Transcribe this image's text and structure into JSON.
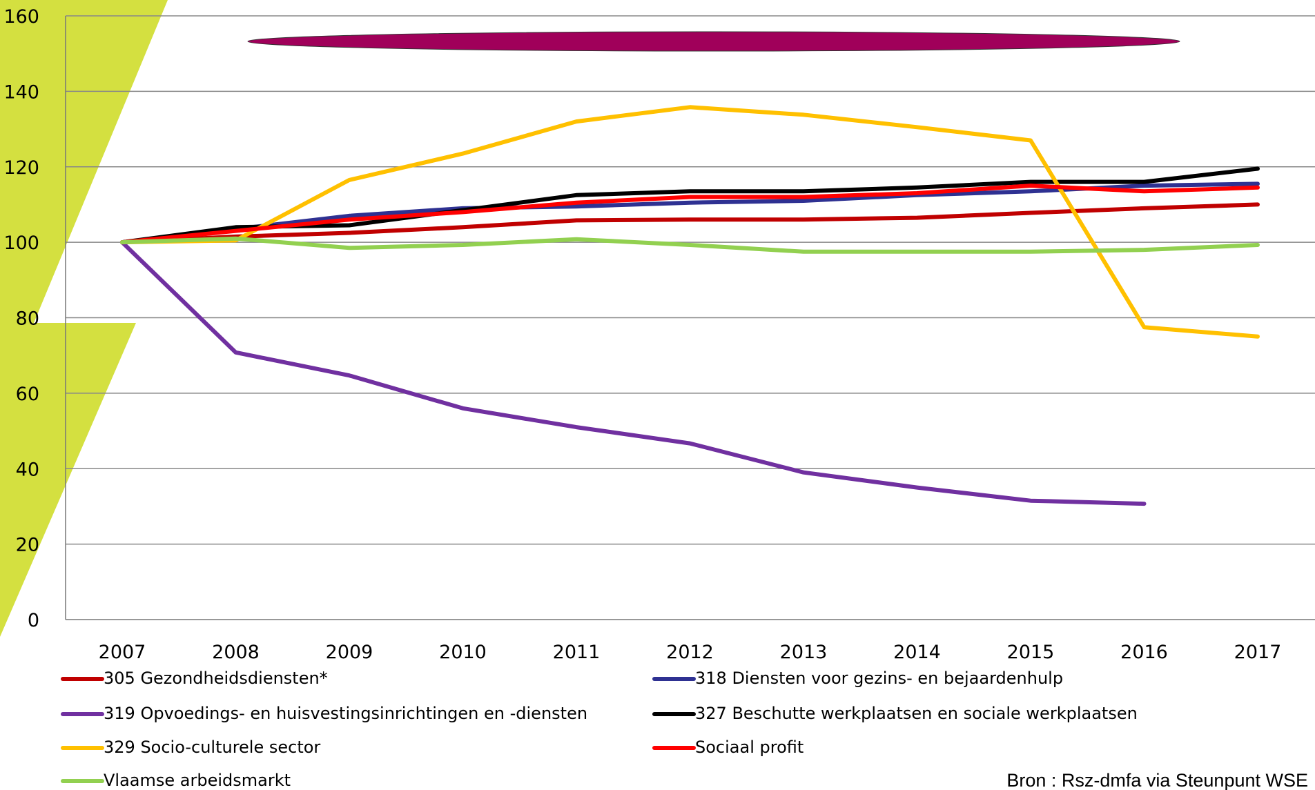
{
  "chart_data": {
    "type": "line",
    "x": [
      "2007",
      "2008",
      "2009",
      "2010",
      "2011",
      "2012",
      "2013",
      "2014",
      "2015",
      "2016",
      "2017"
    ],
    "ylim": [
      0,
      160
    ],
    "yticks": [
      0,
      20,
      40,
      60,
      80,
      100,
      120,
      140,
      160
    ],
    "grid": true,
    "series": [
      {
        "name": "305 Gezondheidsdiensten*",
        "color": "#c00000",
        "values": [
          100,
          101.5,
          102.5,
          104,
          105.8,
          106,
          106,
          106.5,
          107.8,
          109,
          110
        ]
      },
      {
        "name": "318 Diensten voor gezins- en bejaardenhulp",
        "color": "#2e3192",
        "values": [
          100,
          103.5,
          107,
          109,
          109.5,
          110.5,
          111,
          112.5,
          113.5,
          115,
          115.5
        ]
      },
      {
        "name": "319 Opvoedings- en huisvestingsinrichtingen en -diensten",
        "color": "#7030a0",
        "values": [
          100,
          70.8,
          64.7,
          56,
          51,
          46.7,
          39,
          35,
          31.5,
          30.7,
          null
        ]
      },
      {
        "name": "327 Beschutte werkplaatsen en sociale werkplaatsen",
        "color": "#000000",
        "values": [
          100,
          104,
          104.5,
          108.5,
          112.5,
          113.5,
          113.5,
          114.5,
          116,
          116,
          119.5
        ]
      },
      {
        "name": "329 Socio-culturele sector",
        "color": "#ffc000",
        "values": [
          100,
          100.5,
          116.5,
          123.5,
          132,
          135.8,
          133.8,
          130.5,
          127,
          77.5,
          75
        ]
      },
      {
        "name": "Sociaal profit",
        "color": "#ff0000",
        "values": [
          100,
          103,
          106,
          108,
          110.5,
          112,
          112,
          113,
          115,
          113.5,
          114.5
        ]
      },
      {
        "name": "Vlaamse arbeidsmarkt",
        "color": "#92d050",
        "values": [
          100,
          101,
          98.5,
          99.3,
          100.8,
          99.3,
          97.5,
          97.5,
          97.5,
          98,
          99.3
        ]
      }
    ],
    "source": "Bron : Rsz-dmfa via Steunpunt WSE"
  }
}
